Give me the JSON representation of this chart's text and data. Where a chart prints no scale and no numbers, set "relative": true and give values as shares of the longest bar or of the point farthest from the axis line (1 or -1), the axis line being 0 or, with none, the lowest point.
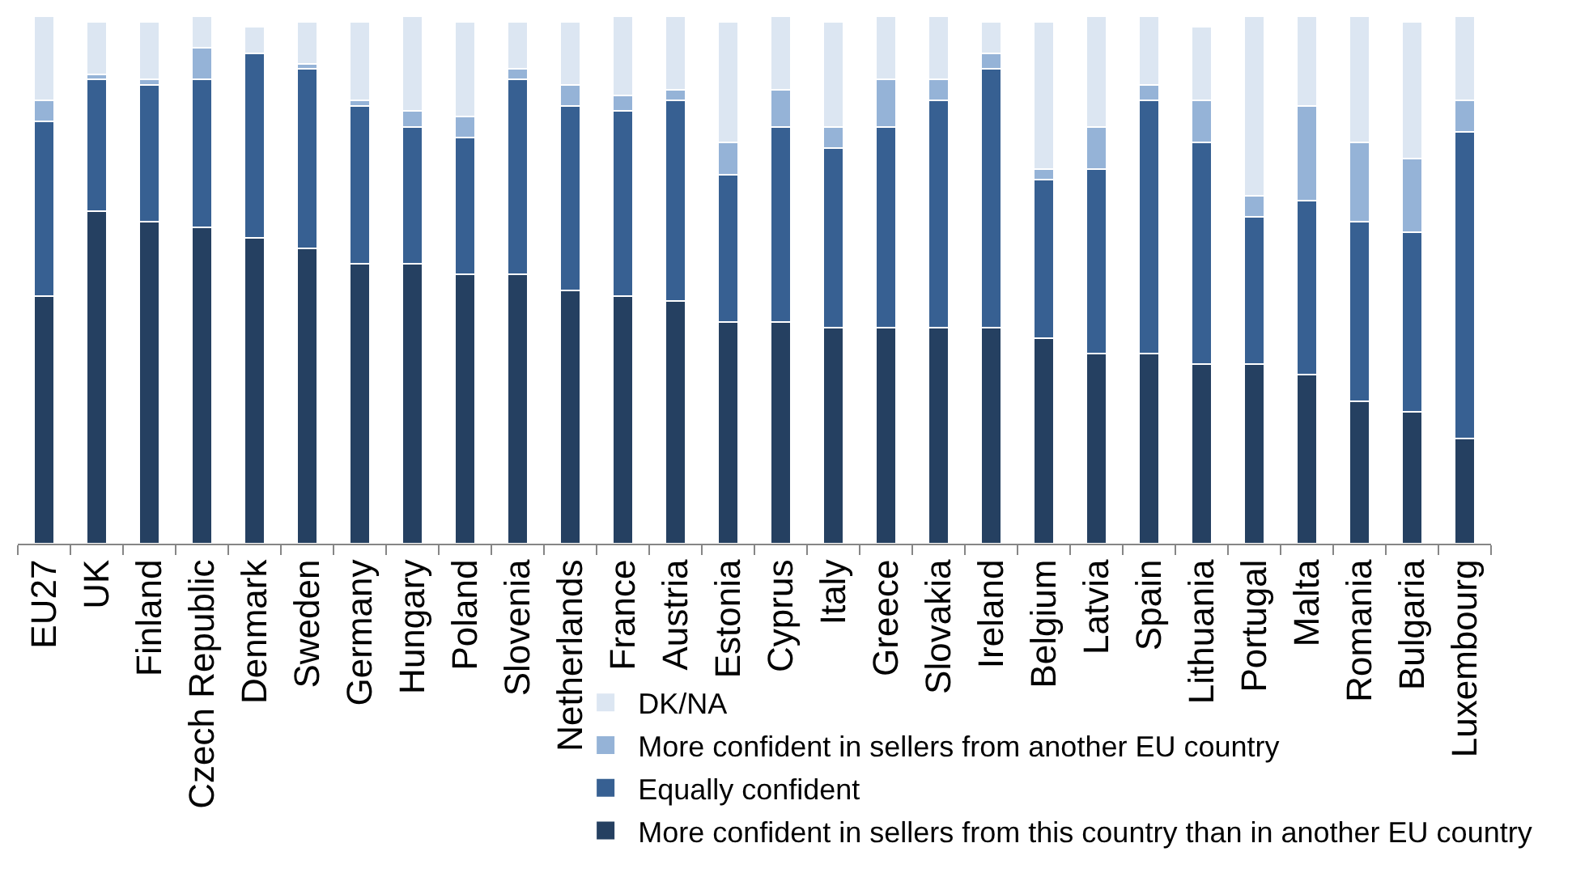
{
  "chart_data": {
    "type": "bar",
    "stacked": true,
    "relative": true,
    "legend": "bottom right",
    "categories": [
      "EU27",
      "UK",
      "Finland",
      "Czech Republic",
      "Denmark",
      "Sweden",
      "Germany",
      "Hungary",
      "Poland",
      "Slovenia",
      "Netherlands",
      "France",
      "Austria",
      "Estonia",
      "Cyprus",
      "Italy",
      "Greece",
      "Slovakia",
      "Ireland",
      "Belgium",
      "Latvia",
      "Spain",
      "Lithuania",
      "Portugal",
      "Malta",
      "Romania",
      "Bulgaria",
      "Luxembourg"
    ],
    "series": [
      {
        "name": "More confident in sellers from this country than in another EU country",
        "color": "#254061",
        "values": [
          0.47,
          0.63,
          0.61,
          0.6,
          0.58,
          0.56,
          0.53,
          0.53,
          0.51,
          0.51,
          0.48,
          0.47,
          0.46,
          0.42,
          0.42,
          0.41,
          0.41,
          0.41,
          0.41,
          0.39,
          0.36,
          0.36,
          0.34,
          0.34,
          0.32,
          0.27,
          0.25,
          0.2
        ]
      },
      {
        "name": "Equally confident",
        "color": "#376092",
        "values": [
          0.33,
          0.25,
          0.26,
          0.28,
          0.35,
          0.34,
          0.3,
          0.26,
          0.26,
          0.37,
          0.35,
          0.35,
          0.38,
          0.28,
          0.37,
          0.34,
          0.38,
          0.43,
          0.49,
          0.3,
          0.35,
          0.48,
          0.42,
          0.28,
          0.33,
          0.34,
          0.34,
          0.58
        ]
      },
      {
        "name": "More confident in sellers from another EU country",
        "color": "#95b3d7",
        "values": [
          0.04,
          0.01,
          0.01,
          0.06,
          0,
          0.01,
          0.01,
          0.03,
          0.04,
          0.02,
          0.04,
          0.03,
          0.02,
          0.06,
          0.07,
          0.04,
          0.09,
          0.04,
          0.03,
          0.02,
          0.08,
          0.03,
          0.08,
          0.04,
          0.18,
          0.15,
          0.14,
          0.06
        ]
      },
      {
        "name": "DK/NA",
        "color": "#dce6f2",
        "values": [
          0.16,
          0.1,
          0.11,
          0.06,
          0.05,
          0.08,
          0.15,
          0.18,
          0.18,
          0.09,
          0.12,
          0.15,
          0.14,
          0.23,
          0.14,
          0.2,
          0.12,
          0.12,
          0.06,
          0.28,
          0.21,
          0.13,
          0.14,
          0.34,
          0.17,
          0.24,
          0.26,
          0.16
        ]
      }
    ]
  }
}
